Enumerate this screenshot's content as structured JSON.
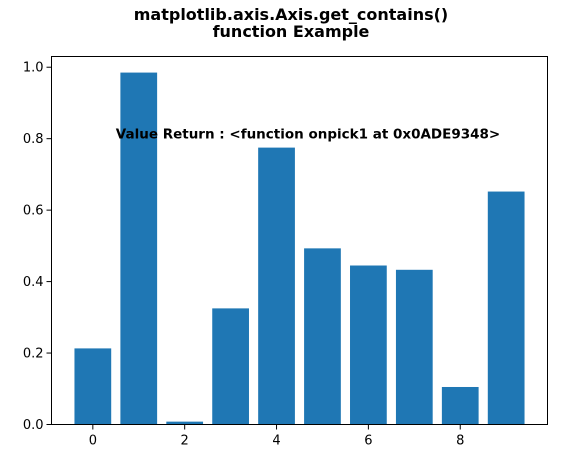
{
  "chart_data": {
    "type": "bar",
    "title_lines": [
      "matplotlib.axis.Axis.get_contains()",
      "function Example"
    ],
    "xlabel": "",
    "ylabel": "",
    "x": [
      0,
      1,
      2,
      3,
      4,
      5,
      6,
      7,
      8,
      9
    ],
    "values": [
      0.213,
      0.985,
      0.008,
      0.325,
      0.775,
      0.493,
      0.445,
      0.433,
      0.105,
      0.652
    ],
    "xlim": [
      -0.9,
      9.9
    ],
    "ylim": [
      0,
      1.03
    ],
    "xticks": [
      0,
      2,
      4,
      6,
      8
    ],
    "yticks": [
      0.0,
      0.2,
      0.4,
      0.6,
      0.8,
      1.0
    ],
    "xtick_labels": [
      "0",
      "2",
      "4",
      "6",
      "8"
    ],
    "ytick_labels": [
      "0.0",
      "0.2",
      "0.4",
      "0.6",
      "0.8",
      "1.0"
    ],
    "bar_width": 0.8,
    "bar_color": "#1f77b4",
    "grid": false,
    "annotation": {
      "text": "Value Return : <function onpick1 at 0x0ADE9348>",
      "x": 0.5,
      "y": 0.8
    }
  }
}
